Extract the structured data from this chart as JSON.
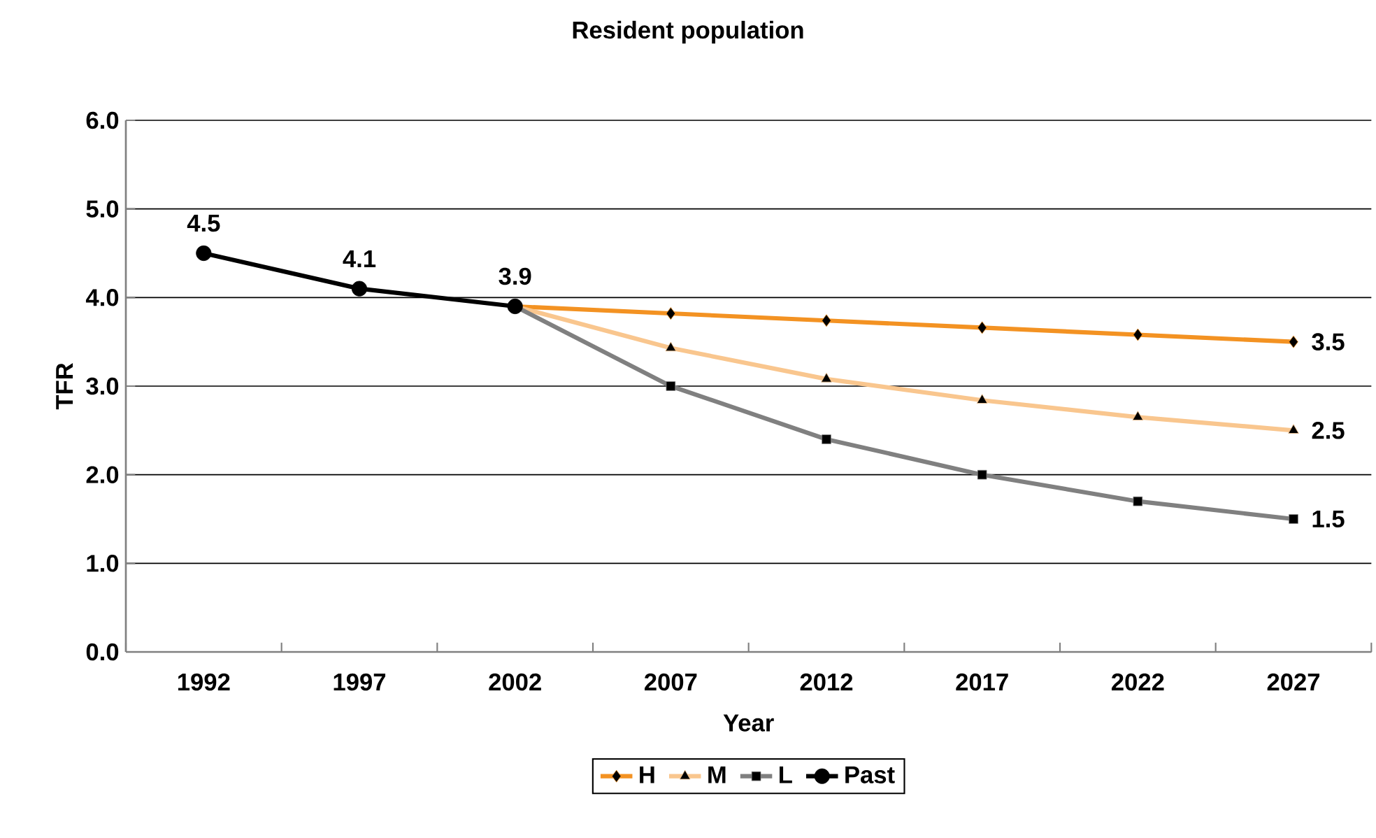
{
  "chart_data": {
    "type": "line",
    "title": "Resident population",
    "xlabel": "Year",
    "ylabel": "TFR",
    "categories": [
      "1992",
      "1997",
      "2002",
      "2007",
      "2012",
      "2017",
      "2022",
      "2027"
    ],
    "ylim": [
      0,
      6
    ],
    "yticks": [
      {
        "value": 0,
        "label": "0.0"
      },
      {
        "value": 1,
        "label": "1.0"
      },
      {
        "value": 2,
        "label": "2.0"
      },
      {
        "value": 3,
        "label": "3.0"
      },
      {
        "value": 4,
        "label": "4.0"
      },
      {
        "value": 5,
        "label": "5.0"
      },
      {
        "value": 6,
        "label": "6.0"
      }
    ],
    "grid": "y",
    "legend": "bottom",
    "line_style": "solid",
    "series": [
      {
        "name": "H",
        "color": "#f39222",
        "marker": "diamond",
        "values": [
          null,
          null,
          3.9,
          3.82,
          3.74,
          3.66,
          3.58,
          3.5
        ],
        "value_labels": [
          null,
          null,
          null,
          null,
          null,
          null,
          null,
          "3.5"
        ]
      },
      {
        "name": "M",
        "color": "#f9c68e",
        "marker": "triangle",
        "values": [
          null,
          null,
          3.9,
          3.43,
          3.08,
          2.84,
          2.65,
          2.5
        ],
        "value_labels": [
          null,
          null,
          null,
          null,
          null,
          null,
          null,
          "2.5"
        ]
      },
      {
        "name": "L",
        "color": "#808080",
        "marker": "square",
        "values": [
          null,
          null,
          3.9,
          3.0,
          2.4,
          2.0,
          1.7,
          1.5
        ],
        "value_labels": [
          null,
          null,
          null,
          null,
          null,
          null,
          null,
          "1.5"
        ]
      },
      {
        "name": "Past",
        "color": "#000000",
        "marker": "circle",
        "values": [
          4.5,
          4.1,
          3.9,
          null,
          null,
          null,
          null,
          null
        ],
        "value_labels": [
          "4.5",
          "4.1",
          "3.9",
          null,
          null,
          null,
          null,
          null
        ]
      }
    ]
  }
}
